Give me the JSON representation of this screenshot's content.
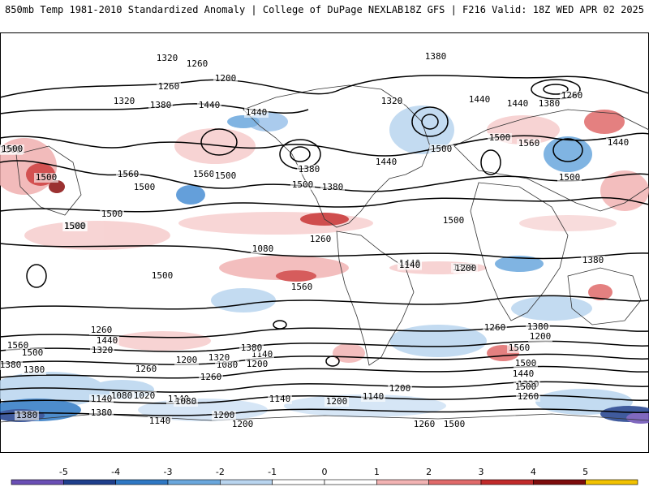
{
  "header": {
    "title_left": "850mb Temp 1981-2010 Standardized Anomaly | College of DuPage NEXLAB",
    "title_right": "18Z GFS | F216 Valid: 18Z WED APR 02 2025"
  },
  "colorbar": {
    "ticks": [
      "-5",
      "-4",
      "-3",
      "-2",
      "-1",
      "0",
      "1",
      "2",
      "3",
      "4",
      "5"
    ],
    "colors": [
      "#6a4fb5",
      "#1f3f8c",
      "#2f78c4",
      "#6aa7dd",
      "#b9d5ef",
      "#ffffff",
      "#ffffff",
      "#f2b3b3",
      "#e06a6a",
      "#c12a2a",
      "#7d0c0c",
      "#f2c200"
    ]
  },
  "contour_labels": [
    {
      "text": "1320"
    },
    {
      "text": "1260"
    },
    {
      "text": "1200"
    },
    {
      "text": "1260"
    },
    {
      "text": "1320"
    },
    {
      "text": "1380"
    },
    {
      "text": "1440"
    },
    {
      "text": "1440"
    },
    {
      "text": "1500"
    },
    {
      "text": "1560"
    },
    {
      "text": "1560"
    },
    {
      "text": "1500"
    },
    {
      "text": "1500"
    },
    {
      "text": "1380"
    },
    {
      "text": "1500"
    },
    {
      "text": "1320"
    },
    {
      "text": "1380"
    },
    {
      "text": "1440"
    },
    {
      "text": "1380"
    },
    {
      "text": "1440"
    },
    {
      "text": "1500"
    },
    {
      "text": "1560"
    },
    {
      "text": "1440"
    },
    {
      "text": "1380"
    },
    {
      "text": "1260"
    },
    {
      "text": "1440"
    },
    {
      "text": "1380"
    },
    {
      "text": "1500"
    },
    {
      "text": "1500"
    },
    {
      "text": "1500"
    },
    {
      "text": "1500"
    },
    {
      "text": "1500"
    },
    {
      "text": "1500"
    },
    {
      "text": "1560"
    },
    {
      "text": "1500"
    },
    {
      "text": "1440"
    },
    {
      "text": "1320"
    },
    {
      "text": "1380"
    },
    {
      "text": "1500"
    },
    {
      "text": "1080"
    },
    {
      "text": "1200"
    },
    {
      "text": "1260"
    },
    {
      "text": "1140"
    },
    {
      "text": "1260"
    },
    {
      "text": "1200"
    },
    {
      "text": "1380"
    },
    {
      "text": "1560"
    },
    {
      "text": "1500"
    },
    {
      "text": "1440"
    },
    {
      "text": "1320"
    },
    {
      "text": "1500"
    },
    {
      "text": "1260"
    },
    {
      "text": "1380"
    },
    {
      "text": "1260"
    },
    {
      "text": "1440"
    },
    {
      "text": "1560"
    },
    {
      "text": "1500"
    },
    {
      "text": "1380"
    },
    {
      "text": "1320"
    },
    {
      "text": "1260"
    },
    {
      "text": "1200"
    },
    {
      "text": "1080"
    },
    {
      "text": "1200"
    },
    {
      "text": "1140"
    },
    {
      "text": "1260"
    },
    {
      "text": "1320"
    },
    {
      "text": "1380"
    },
    {
      "text": "1080"
    },
    {
      "text": "1140"
    },
    {
      "text": "1020"
    },
    {
      "text": "1140"
    },
    {
      "text": "1200"
    },
    {
      "text": "1140"
    },
    {
      "text": "1080"
    },
    {
      "text": "1200"
    },
    {
      "text": "1140"
    },
    {
      "text": "1200"
    },
    {
      "text": "1140"
    },
    {
      "text": "1260"
    },
    {
      "text": "1500"
    },
    {
      "text": "1200"
    },
    {
      "text": "1380"
    },
    {
      "text": "1380"
    }
  ]
}
